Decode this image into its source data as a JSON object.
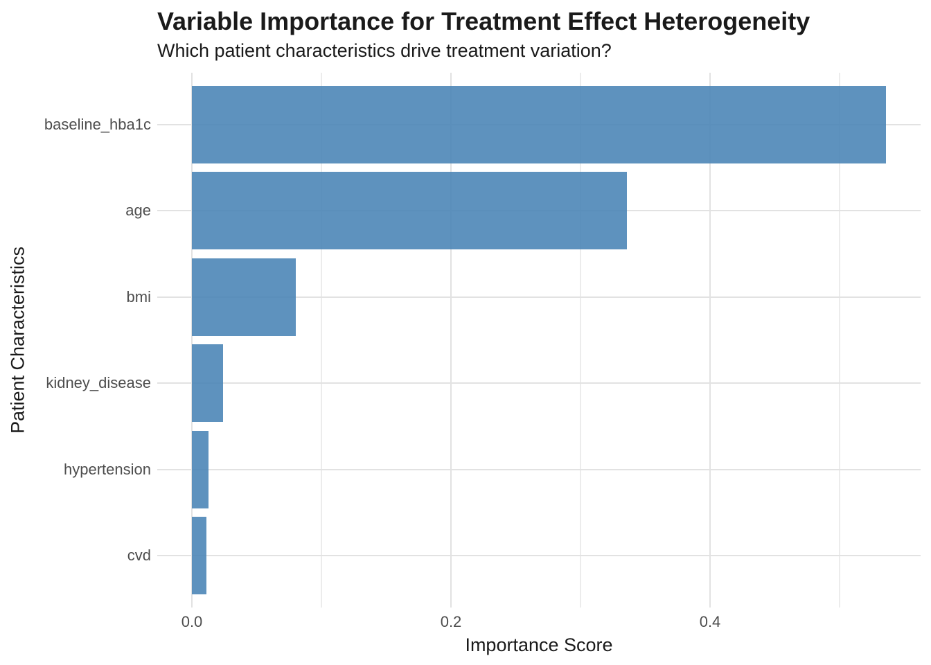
{
  "chart_data": {
    "type": "bar",
    "orientation": "horizontal",
    "title": "Variable Importance for Treatment Effect Heterogeneity",
    "subtitle": "Which patient characteristics drive treatment variation?",
    "xlabel": "Importance Score",
    "ylabel": "Patient Characteristics",
    "categories": [
      "baseline_hba1c",
      "age",
      "bmi",
      "kidney_disease",
      "hypertension",
      "cvd"
    ],
    "values": [
      0.536,
      0.336,
      0.08,
      0.024,
      0.013,
      0.011
    ],
    "xlim": [
      0,
      0.5626
    ],
    "x_ticks": [
      {
        "value": 0,
        "label": "0.0"
      },
      {
        "value": 0.2,
        "label": "0.2"
      },
      {
        "value": 0.4,
        "label": "0.4"
      }
    ],
    "x_minor_ticks": [
      0.1,
      0.3,
      0.5
    ],
    "legend": "none",
    "grid": {
      "vertical_major": true,
      "vertical_minor": true,
      "horizontal_major": true
    },
    "colors": {
      "bar": "#4682B4",
      "bar_opacity": 0.87,
      "grid_major": "#E2E2E2",
      "grid_minor": "#ECECEC",
      "tick_label": "#4D4D4D",
      "title_text": "#1A1A1A",
      "background": "#FFFFFF"
    }
  }
}
